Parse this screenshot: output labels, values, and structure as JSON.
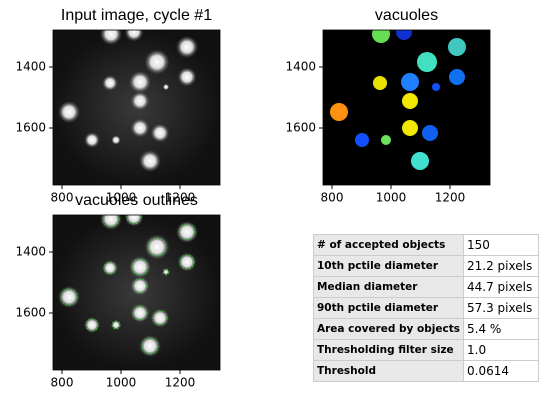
{
  "panels": [
    {
      "title": "Input image, cycle #1",
      "xticks": [
        800,
        1000,
        1200
      ],
      "yticks": [
        1400,
        1600
      ]
    },
    {
      "title": "vacuoles",
      "xticks": [
        800,
        1000,
        1200
      ],
      "yticks": [
        1400,
        1600
      ]
    },
    {
      "title": "vacuoles outlines",
      "xticks": [
        800,
        1000,
        1200
      ],
      "yticks": [
        1400,
        1600
      ]
    }
  ],
  "table": {
    "rows": [
      [
        "# of accepted objects",
        "150"
      ],
      [
        "10th pctile diameter",
        "21.2 pixels"
      ],
      [
        "Median diameter",
        "44.7 pixels"
      ],
      [
        "90th pctile diameter",
        "57.3 pixels"
      ],
      [
        "Area covered by objects",
        "5.4 %"
      ],
      [
        "Thresholding filter size",
        "1.0"
      ],
      [
        "Threshold",
        "0.0614"
      ]
    ]
  }
}
